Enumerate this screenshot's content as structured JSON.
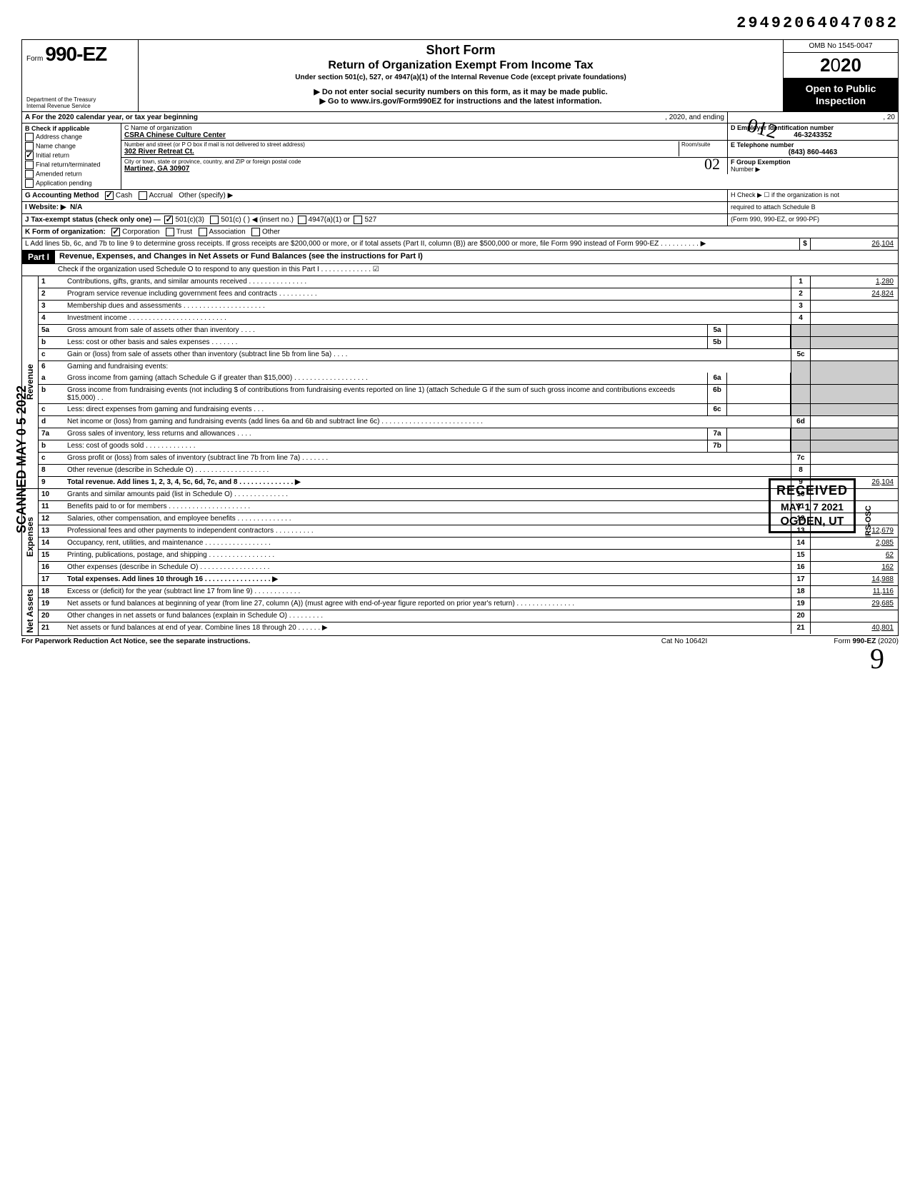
{
  "doc_id": "29492064047082",
  "header": {
    "form_prefix": "Form",
    "form_no": "990-EZ",
    "short": "Short Form",
    "title": "Return of Organization Exempt From Income Tax",
    "subtitle": "Under section 501(c), 527, or 4947(a)(1) of the Internal Revenue Code (except private foundations)",
    "warn1": "▶ Do not enter social security numbers on this form, as it may be made public.",
    "warn2": "▶ Go to www.irs.gov/Form990EZ for instructions and the latest information.",
    "dept": "Department of the Treasury\nInternal Revenue Service",
    "omb": "OMB No 1545-0047",
    "year": "2020",
    "inspection": "Open to Public\nInspection"
  },
  "rowA": {
    "label": "A For the 2020 calendar year, or tax year beginning",
    "mid": ", 2020, and ending",
    "end": ", 20"
  },
  "boxB": {
    "title": "B Check if applicable",
    "items": [
      {
        "label": "Address change",
        "checked": false
      },
      {
        "label": "Name change",
        "checked": false
      },
      {
        "label": "Initial return",
        "checked": true
      },
      {
        "label": "Final return/terminated",
        "checked": false
      },
      {
        "label": "Amended return",
        "checked": false
      },
      {
        "label": "Application pending",
        "checked": false
      }
    ]
  },
  "boxC": {
    "c_label": "C Name of organization",
    "name": "CSRA Chinese Culture Center",
    "addr_label": "Number and street (or P O  box if mail is not delivered to street address)",
    "room_label": "Room/suite",
    "street": "302 River Retreat Ct.",
    "city_label": "City or town, state or province, country, and ZIP or foreign postal code",
    "city": "Martinez,   GA 30907"
  },
  "boxD": {
    "label": "D Employer Identification number",
    "value": "46-3243352"
  },
  "boxE": {
    "label": "E Telephone number",
    "value": "(843) 860-4463"
  },
  "boxF": {
    "label": "F Group Exemption",
    "sub": "Number ▶"
  },
  "rowG": {
    "label": "G Accounting Method",
    "cash": "Cash",
    "accr": "Accrual",
    "other": "Other (specify) ▶"
  },
  "rowH": {
    "label": "H Check ▶ ☐ if the organization is not",
    "sub": "required to attach Schedule B",
    "sub2": "(Form 990, 990-EZ, or 990-PF)"
  },
  "rowI": {
    "label": "I Website: ▶",
    "value": "N/A"
  },
  "rowJ": {
    "label": "J Tax-exempt status (check only one) —",
    "a": "501(c)(3)",
    "b": "501(c) (       ) ◀ (insert no.)",
    "c": "4947(a)(1) or",
    "d": "527"
  },
  "rowK": {
    "label": "K Form of organization:",
    "a": "Corporation",
    "b": "Trust",
    "c": "Association",
    "d": "Other"
  },
  "rowL": {
    "text": "L Add lines 5b, 6c, and 7b to line 9 to determine gross receipts. If gross receipts are $200,000 or more, or if total assets (Part II, column (B)) are $500,000 or more, file Form 990 instead of Form 990-EZ   .   .   .   .   .   .   .   .   .   .   ▶",
    "sym": "$",
    "val": "26,104"
  },
  "part1": {
    "tag": "Part I",
    "title": "Revenue, Expenses, and Changes in Net Assets or Fund Balances (see the instructions for Part I)",
    "check_line": "Check if the organization used Schedule O to respond to any question in this Part I  .   .   .   .   .   .   .   .   .   .   .   .   .   ☑"
  },
  "sections": {
    "rev": "Revenue",
    "exp": "Expenses",
    "na": "Net Assets"
  },
  "lines": {
    "1": {
      "txt": "Contributions, gifts, grants, and similar amounts received .   .   .   .   .   .   .   .   .   .   .   .   .   .   .",
      "num": "1",
      "val": "1,280"
    },
    "2": {
      "txt": "Program service revenue including government fees and contracts   .   .   .   .   .   .   .   .   .   .",
      "num": "2",
      "val": "24,824"
    },
    "3": {
      "txt": "Membership dues and assessments .   .   .   .   .   .   .   .   .   .   .   .   .   .   .   .   .   .   .   .   .",
      "num": "3",
      "val": ""
    },
    "4": {
      "txt": "Investment income   .   .   .   .   .   .   .   .   .   .   .   .   .   .   .   .   .   .   .   .   .   .   .   .   .",
      "num": "4",
      "val": ""
    },
    "5a": {
      "txt": "Gross amount from sale of assets other than inventory   .   .   .   .",
      "mn": "5a"
    },
    "5b": {
      "txt": "Less: cost or other basis and sales expenses .   .   .   .   .   .   .",
      "mn": "5b"
    },
    "5c": {
      "txt": "Gain or (loss) from sale of assets other than inventory (subtract line 5b from line 5a)  .   .   .   .",
      "num": "5c",
      "val": ""
    },
    "6": {
      "txt": "Gaming and fundraising events:"
    },
    "6a": {
      "txt": "Gross income from gaming (attach Schedule G if greater than $15,000) .   .   .   .   .   .   .   .   .   .   .   .   .   .   .   .   .   .   .",
      "mn": "6a"
    },
    "6b": {
      "txt": "Gross income from fundraising events (not including  $                of contributions from fundraising events reported on line 1) (attach Schedule G if the sum of such gross income and contributions exceeds $15,000) .   .",
      "mn": "6b"
    },
    "6c": {
      "txt": "Less: direct expenses from gaming and fundraising events   .   .   .",
      "mn": "6c"
    },
    "6d": {
      "txt": "Net income or (loss) from gaming and fundraising events (add lines 6a and 6b and subtract line 6c)   .   .   .   .   .   .   .   .   .   .   .   .   .   .   .   .   .   .   .   .   .   .   .   .   .   .",
      "num": "6d",
      "val": ""
    },
    "7a": {
      "txt": "Gross sales of inventory, less returns and allowances   .   .   .   .",
      "mn": "7a"
    },
    "7b": {
      "txt": "Less: cost of goods sold    .   .   .   .   .   .   .   .   .   .   .   .   .",
      "mn": "7b"
    },
    "7c": {
      "txt": "Gross profit or (loss) from sales of inventory (subtract line 7b from line 7a)  .   .   .   .   .   .   .",
      "num": "7c",
      "val": ""
    },
    "8": {
      "txt": "Other revenue (describe in Schedule O) .   .   .   .   .   .   .   .   .   .   .   .   .   .   .   .   .   .   .",
      "num": "8",
      "val": ""
    },
    "9": {
      "txt": "Total revenue. Add lines 1, 2, 3, 4, 5c, 6d, 7c, and 8   .   .   .   .   .   .   .   .   .   .   .   .   .   .   ▶",
      "num": "9",
      "val": "26,104"
    },
    "10": {
      "txt": "Grants and similar amounts paid (list in Schedule O)   .   .   .   .   .   .   .   .   .   .   .   .   .   .",
      "num": "10",
      "val": ""
    },
    "11": {
      "txt": "Benefits paid to or for members   .   .   .   .   .   .   .   .   .   .   .   .   .   .   .   .   .   .   .   .   .",
      "num": "11",
      "val": ""
    },
    "12": {
      "txt": "Salaries, other compensation, and employee benefits  .   .   .   .   .   .   .   .   .   .   .   .   .   .",
      "num": "12",
      "val": ""
    },
    "13": {
      "txt": "Professional fees and other payments to independent contractors .   .   .   .   .   .   .   .   .   .",
      "num": "13",
      "val": "12,679"
    },
    "14": {
      "txt": "Occupancy, rent, utilities, and maintenance   .   .   .   .   .   .   .   .   .   .   .   .   .   .   .   .   .",
      "num": "14",
      "val": "2,085"
    },
    "15": {
      "txt": "Printing, publications, postage, and shipping .   .   .   .   .   .   .   .   .   .   .   .   .   .   .   .   .",
      "num": "15",
      "val": "62"
    },
    "16": {
      "txt": "Other expenses (describe in Schedule O)  .   .   .   .   .   .   .   .   .   .   .   .   .   .   .   .   .   .",
      "num": "16",
      "val": "162"
    },
    "17": {
      "txt": "Total expenses. Add lines 10 through 16  .   .   .   .   .   .   .   .   .   .   .   .   .   .   .   .   .   ▶",
      "num": "17",
      "val": "14,988"
    },
    "18": {
      "txt": "Excess or (deficit) for the year (subtract line 17 from line 9)   .   .   .   .   .   .   .   .   .   .   .   .",
      "num": "18",
      "val": "11,116"
    },
    "19": {
      "txt": "Net assets or fund balances at beginning of year (from line 27, column (A)) (must agree with end-of-year figure reported on prior year's return)   .   .   .   .   .   .   .   .   .   .   .   .   .   .   .",
      "num": "19",
      "val": "29,685"
    },
    "20": {
      "txt": "Other changes in net assets or fund balances (explain in Schedule O) .   .   .   .   .   .   .   .   .",
      "num": "20",
      "val": ""
    },
    "21": {
      "txt": "Net assets or fund balances at end of year. Combine lines 18 through 20   .   .   .   .   .   .   ▶",
      "num": "21",
      "val": "40,801"
    }
  },
  "footer": {
    "left": "For Paperwork Reduction Act Notice, see the separate instructions.",
    "mid": "Cat  No  10642I",
    "right": "Form 990-EZ (2020)"
  },
  "stamps": {
    "scan": "SCANNED MAY 0 5 2022",
    "received": "RECEIVED",
    "recv_date": "MAY 1 7 2021",
    "recv_loc": "OGDEN, UT",
    "hand02": "02",
    "hand9": "9",
    "seal": "012",
    "irsosc": "IRS-OSC"
  }
}
